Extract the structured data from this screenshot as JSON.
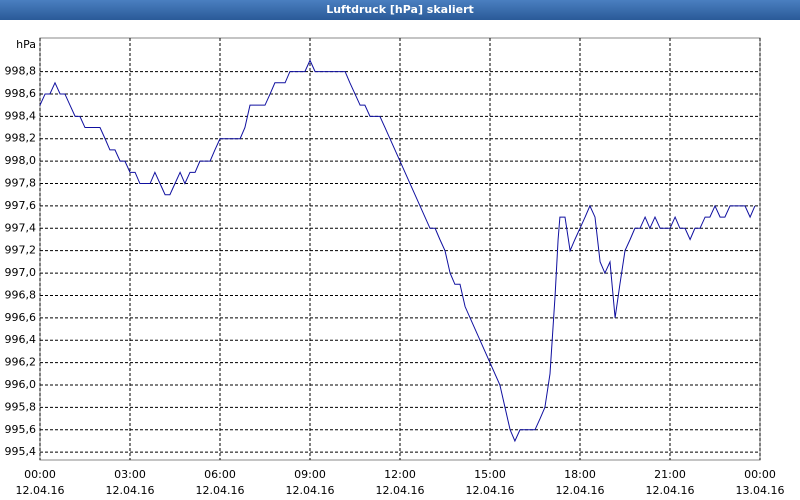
{
  "chart_data": {
    "type": "line",
    "title": "Luftdruck [hPa] skaliert",
    "y_label": "hPa",
    "color": "#1010a0",
    "grid": true,
    "x": [
      0,
      0.17,
      0.33,
      0.5,
      0.67,
      0.83,
      1,
      1.17,
      1.33,
      1.5,
      1.67,
      2,
      2.17,
      2.33,
      2.5,
      2.67,
      2.83,
      3,
      3.17,
      3.33,
      3.5,
      3.67,
      3.83,
      4,
      4.17,
      4.33,
      4.5,
      4.67,
      4.83,
      5,
      5.17,
      5.33,
      5.67,
      5.83,
      6,
      6.67,
      6.83,
      7,
      7.5,
      7.67,
      7.83,
      8.17,
      8.33,
      8.83,
      9,
      9.17,
      10.17,
      10.33,
      10.5,
      10.67,
      10.83,
      11,
      11.33,
      11.5,
      13,
      13.17,
      13.33,
      13.5,
      13.67,
      13.83,
      14,
      14.17,
      15.33,
      15.5,
      15.67,
      15.83,
      16,
      16.5,
      16.67,
      16.83,
      17,
      17.17,
      17.27,
      17.33,
      17.5,
      17.67,
      17.83,
      18,
      18.17,
      18.33,
      18.5,
      18.67,
      18.83,
      19,
      19.17,
      19.33,
      19.5,
      19.67,
      19.83,
      20,
      20.17,
      20.33,
      20.5,
      20.67,
      21,
      21.17,
      21.33,
      21.5,
      21.67,
      21.83,
      22,
      22.17,
      22.33,
      22.5,
      22.67,
      22.83,
      23,
      23.5,
      23.67,
      23.83
    ],
    "values": [
      998.5,
      998.6,
      998.6,
      998.7,
      998.6,
      998.6,
      998.5,
      998.4,
      998.4,
      998.3,
      998.3,
      998.3,
      998.2,
      998.1,
      998.1,
      998.0,
      998.0,
      997.9,
      997.9,
      997.8,
      997.8,
      997.8,
      997.9,
      997.8,
      997.7,
      997.7,
      997.8,
      997.9,
      997.8,
      997.9,
      997.9,
      998.0,
      998.0,
      998.1,
      998.2,
      998.2,
      998.3,
      998.5,
      998.5,
      998.6,
      998.7,
      998.7,
      998.8,
      998.8,
      998.9,
      998.8,
      998.8,
      998.7,
      998.6,
      998.5,
      998.5,
      998.4,
      998.4,
      998.3,
      997.4,
      997.4,
      997.3,
      997.2,
      997.0,
      996.9,
      996.9,
      996.7,
      996.0,
      995.8,
      995.6,
      995.5,
      995.6,
      995.6,
      995.7,
      995.8,
      996.1,
      996.8,
      997.3,
      997.5,
      997.5,
      997.2,
      997.3,
      997.4,
      997.5,
      997.6,
      997.5,
      997.1,
      997.0,
      997.1,
      996.6,
      996.9,
      997.2,
      997.3,
      997.4,
      997.4,
      997.5,
      997.4,
      997.5,
      997.4,
      997.4,
      997.5,
      997.4,
      997.4,
      997.3,
      997.4,
      997.4,
      997.5,
      997.5,
      997.6,
      997.5,
      997.5,
      997.6,
      997.6,
      997.5,
      997.6
    ],
    "xlim": [
      0,
      24
    ],
    "xticks": [
      {
        "value": 0,
        "label": "00:00\n12.04.16"
      },
      {
        "value": 3,
        "label": "03:00\n12.04.16"
      },
      {
        "value": 6,
        "label": "06:00\n12.04.16"
      },
      {
        "value": 9,
        "label": "09:00\n12.04.16"
      },
      {
        "value": 12,
        "label": "12:00\n12.04.16"
      },
      {
        "value": 15,
        "label": "15:00\n12.04.16"
      },
      {
        "value": 18,
        "label": "18:00\n12.04.16"
      },
      {
        "value": 21,
        "label": "21:00\n12.04.16"
      },
      {
        "value": 24,
        "label": "00:00\n13.04.16"
      }
    ],
    "ylim": [
      995.33,
      999.1
    ],
    "yticks": [
      {
        "value": 995.4,
        "label": "995,4"
      },
      {
        "value": 995.6,
        "label": "995,6"
      },
      {
        "value": 995.8,
        "label": "995,8"
      },
      {
        "value": 996.0,
        "label": "996,0"
      },
      {
        "value": 996.2,
        "label": "996,2"
      },
      {
        "value": 996.4,
        "label": "996,4"
      },
      {
        "value": 996.6,
        "label": "996,6"
      },
      {
        "value": 996.8,
        "label": "996,8"
      },
      {
        "value": 997.0,
        "label": "997,0"
      },
      {
        "value": 997.2,
        "label": "997,2"
      },
      {
        "value": 997.4,
        "label": "997,4"
      },
      {
        "value": 997.6,
        "label": "997,6"
      },
      {
        "value": 997.8,
        "label": "997,8"
      },
      {
        "value": 998.0,
        "label": "998,0"
      },
      {
        "value": 998.2,
        "label": "998,2"
      },
      {
        "value": 998.4,
        "label": "998,4"
      },
      {
        "value": 998.6,
        "label": "998,6"
      },
      {
        "value": 998.8,
        "label": "998,8"
      }
    ]
  }
}
